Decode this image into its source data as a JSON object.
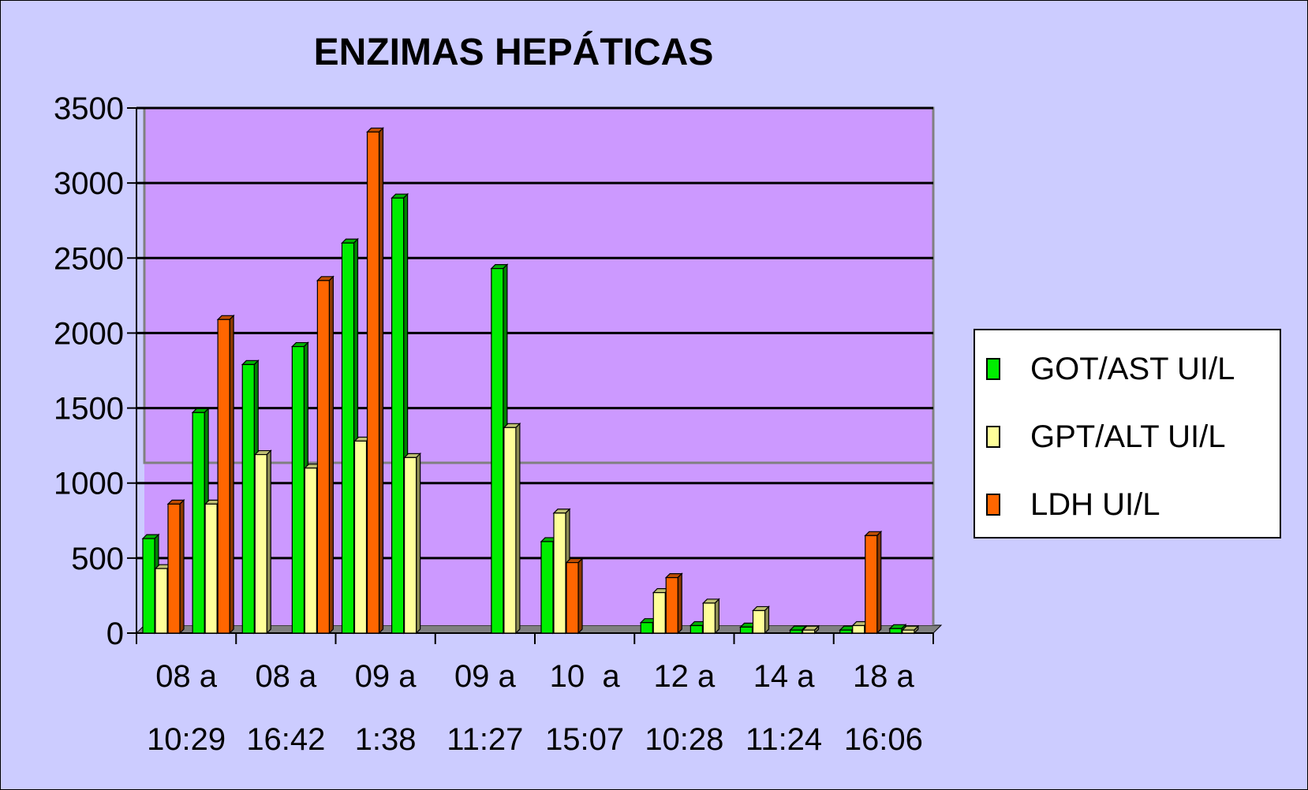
{
  "chart_data": {
    "type": "bar",
    "title": "ENZIMAS HEPÁTICAS",
    "xlabel": "",
    "ylabel": "",
    "ylim": [
      0,
      3500
    ],
    "yticks": [
      0,
      500,
      1000,
      1500,
      2000,
      2500,
      3000,
      3500
    ],
    "grid": true,
    "three_d": true,
    "legend_position": "right",
    "categories": [
      "08 a 10:29",
      "",
      "08 a 16:42",
      "",
      "09 a 1:38",
      "",
      "09 a 11:27",
      "",
      "10 a 15:07",
      "",
      "12 a 10:28",
      "",
      "14 a 11:24",
      "",
      "18 a 16:06",
      ""
    ],
    "tick_labels": [
      {
        "line1": "08 a",
        "line2": "10:29"
      },
      {
        "line1": "08 a",
        "line2": "16:42"
      },
      {
        "line1": "09 a",
        "line2": "1:38"
      },
      {
        "line1": "09 a",
        "line2": "11:27"
      },
      {
        "line1": "10  a",
        "line2": "15:07"
      },
      {
        "line1": "12 a",
        "line2": "10:28"
      },
      {
        "line1": "14 a",
        "line2": "11:24"
      },
      {
        "line1": "18 a",
        "line2": "16:06"
      }
    ],
    "series": [
      {
        "name": "GOT/AST UI/L",
        "color": "#00ee00",
        "values": [
          630,
          1470,
          1790,
          1910,
          2600,
          2900,
          0,
          2430,
          610,
          0,
          70,
          50,
          40,
          20,
          20,
          30
        ]
      },
      {
        "name": "GPT/ALT UI/L",
        "color": "#ffff99",
        "values": [
          430,
          860,
          1190,
          1100,
          1280,
          1170,
          0,
          1370,
          800,
          0,
          270,
          200,
          150,
          20,
          50,
          20
        ]
      },
      {
        "name": "LDH UI/L",
        "color": "#ff6600",
        "values": [
          860,
          2090,
          0,
          2350,
          3340,
          0,
          0,
          0,
          470,
          0,
          370,
          0,
          0,
          0,
          650,
          0
        ]
      }
    ]
  }
}
